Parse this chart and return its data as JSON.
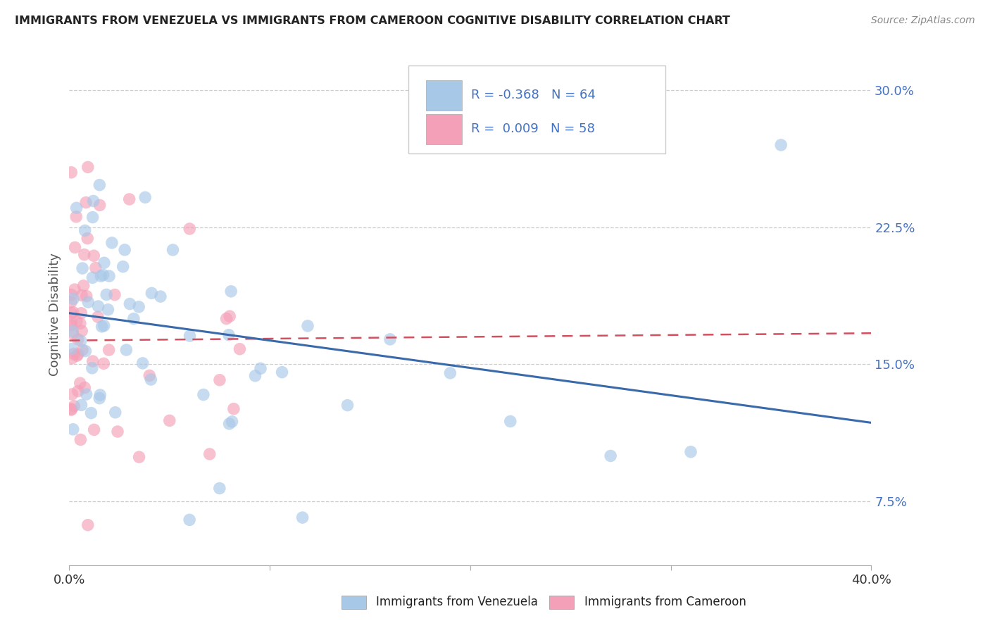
{
  "title": "IMMIGRANTS FROM VENEZUELA VS IMMIGRANTS FROM CAMEROON COGNITIVE DISABILITY CORRELATION CHART",
  "source": "Source: ZipAtlas.com",
  "ylabel": "Cognitive Disability",
  "xlim": [
    0.0,
    0.4
  ],
  "ylim": [
    0.04,
    0.315
  ],
  "yticks": [
    0.075,
    0.15,
    0.225,
    0.3
  ],
  "ytick_labels": [
    "7.5%",
    "15.0%",
    "22.5%",
    "30.0%"
  ],
  "xticks": [
    0.0,
    0.1,
    0.2,
    0.3,
    0.4
  ],
  "xtick_labels": [
    "0.0%",
    "",
    "",
    "",
    "40.0%"
  ],
  "venezuela_R": -0.368,
  "venezuela_N": 64,
  "cameroon_R": 0.009,
  "cameroon_N": 58,
  "venezuela_color": "#a8c8e8",
  "cameroon_color": "#f4a0b8",
  "venezuela_line_color": "#3a6aaa",
  "cameroon_line_color": "#d05060",
  "background_color": "#ffffff",
  "grid_color": "#c8c8c8",
  "legend_label_venezuela": "Immigrants from Venezuela",
  "legend_label_cameroon": "Immigrants from Cameroon",
  "title_color": "#222222",
  "source_color": "#888888",
  "tick_color": "#4472c4",
  "ylabel_color": "#555555"
}
